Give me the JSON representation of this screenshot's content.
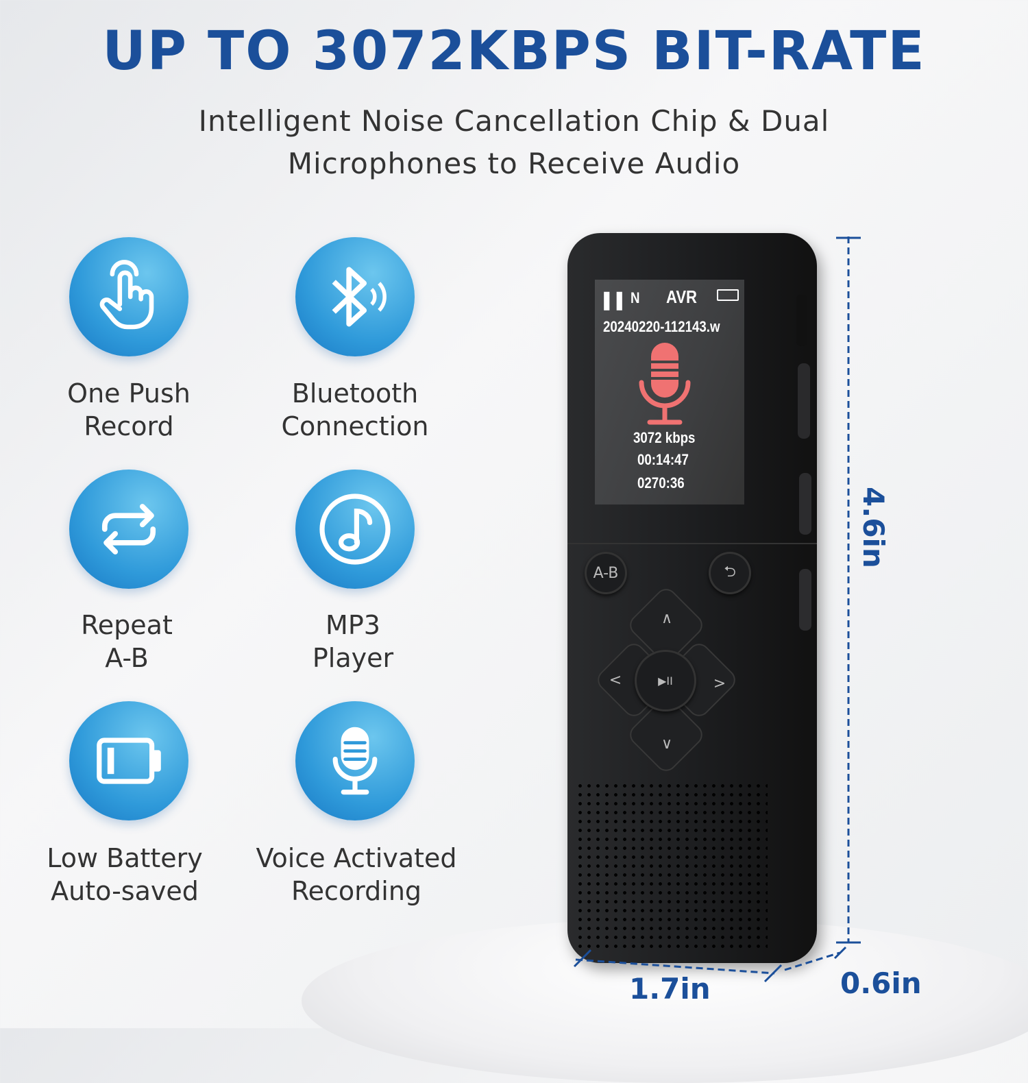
{
  "headline": "UP TO 3072KBPS BIT-RATE",
  "subtitle": [
    "Intelligent Noise Cancellation Chip & Dual",
    "Microphones to Receive Audio"
  ],
  "features": [
    {
      "icon": "touch-hand-icon",
      "lines": [
        "One Push",
        "Record"
      ]
    },
    {
      "icon": "bluetooth-icon",
      "lines": [
        "Bluetooth",
        "Connection"
      ]
    },
    {
      "icon": "repeat-icon",
      "lines": [
        "Repeat",
        "A-B"
      ]
    },
    {
      "icon": "music-note-icon",
      "lines": [
        "MP3",
        "Player"
      ]
    },
    {
      "icon": "battery-icon",
      "lines": [
        "Low Battery",
        "Auto-saved"
      ]
    },
    {
      "icon": "microphone-icon",
      "lines": [
        "Voice Activated",
        "Recording"
      ]
    }
  ],
  "screen": {
    "mode": "N",
    "avr": "AVR",
    "filename": "20240220-112143.w",
    "bitrate": "3072 kbps",
    "elapsed": "00:14:47",
    "remaining": "0270:36",
    "mic_color": "#f07272"
  },
  "buttons": {
    "ab": "A-B",
    "back": "⮌",
    "up": "∧",
    "down": "∨",
    "left": "<",
    "right": ">",
    "play": "▶II"
  },
  "dimensions": {
    "height": "4.6in",
    "width": "1.7in",
    "depth": "0.6in"
  },
  "colors": {
    "accent": "#1b4f9a",
    "icon_blue": "#2f9ada"
  }
}
